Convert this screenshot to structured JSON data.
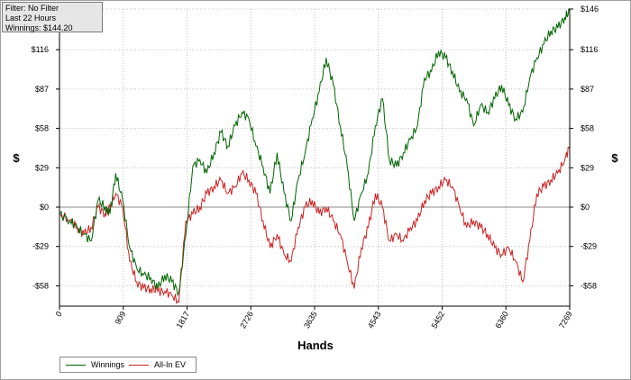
{
  "info": {
    "filter": "Filter: No Filter",
    "period": "Last  22 Hours",
    "winnings": "Winnings: $144.20"
  },
  "colors": {
    "winnings": "#006400",
    "allin": "#cc2222",
    "zero_line": "#888888",
    "grid": "#c0c0c0"
  },
  "chart_data": {
    "type": "line",
    "xlabel": "Hands",
    "ylabel": "$",
    "xlim": [
      0,
      7269
    ],
    "ylim": [
      -73,
      146
    ],
    "x_ticks": [
      "0",
      "909",
      "1817",
      "2726",
      "3635",
      "4543",
      "5452",
      "6360",
      "7269"
    ],
    "x_tick_values": [
      0,
      909,
      1817,
      2726,
      3635,
      4543,
      5452,
      6360,
      7269
    ],
    "y_tick_labels": [
      "$146",
      "$116",
      "$87",
      "$58",
      "$29",
      "$0",
      "-$29",
      "-$58"
    ],
    "y_tick_values": [
      146,
      116,
      87,
      58,
      29,
      0,
      -29,
      -58
    ],
    "grid": true,
    "legend_position": "bottom-left",
    "series": [
      {
        "name": "Winnings",
        "x": [
          0,
          150,
          250,
          350,
          450,
          550,
          650,
          720,
          800,
          900,
          1000,
          1100,
          1200,
          1300,
          1400,
          1500,
          1600,
          1700,
          1800,
          1900,
          2000,
          2100,
          2200,
          2300,
          2400,
          2500,
          2600,
          2700,
          2800,
          2900,
          3000,
          3100,
          3200,
          3300,
          3400,
          3500,
          3600,
          3700,
          3800,
          3900,
          4000,
          4100,
          4200,
          4300,
          4400,
          4500,
          4600,
          4700,
          4800,
          4900,
          5000,
          5100,
          5200,
          5300,
          5400,
          5500,
          5600,
          5700,
          5800,
          5900,
          6000,
          6100,
          6200,
          6300,
          6400,
          6500,
          6600,
          6700,
          6800,
          6900,
          7000,
          7100,
          7200,
          7269
        ],
        "y": [
          -5,
          -10,
          -15,
          -20,
          -25,
          5,
          0,
          -5,
          25,
          5,
          -30,
          -45,
          -50,
          -52,
          -60,
          -50,
          -55,
          -63,
          -20,
          30,
          35,
          25,
          40,
          55,
          45,
          60,
          70,
          65,
          45,
          30,
          10,
          40,
          10,
          -10,
          20,
          40,
          65,
          85,
          110,
          90,
          60,
          30,
          -10,
          10,
          25,
          60,
          80,
          35,
          30,
          40,
          50,
          60,
          95,
          100,
          115,
          110,
          100,
          85,
          80,
          60,
          75,
          70,
          80,
          90,
          75,
          65,
          70,
          95,
          110,
          120,
          130,
          132,
          140,
          144
        ]
      },
      {
        "name": "All-In EV",
        "x": [
          0,
          150,
          250,
          350,
          450,
          550,
          650,
          720,
          800,
          900,
          1000,
          1100,
          1200,
          1300,
          1400,
          1500,
          1600,
          1700,
          1800,
          1900,
          2000,
          2100,
          2200,
          2300,
          2400,
          2500,
          2600,
          2700,
          2800,
          2900,
          3000,
          3100,
          3200,
          3300,
          3400,
          3500,
          3600,
          3700,
          3800,
          3900,
          4000,
          4100,
          4200,
          4300,
          4400,
          4500,
          4600,
          4700,
          4800,
          4900,
          5000,
          5100,
          5200,
          5300,
          5400,
          5500,
          5600,
          5700,
          5800,
          5900,
          6000,
          6100,
          6200,
          6300,
          6400,
          6500,
          6600,
          6700,
          6800,
          6900,
          7000,
          7100,
          7200,
          7269
        ],
        "y": [
          -5,
          -10,
          -15,
          -20,
          -15,
          0,
          -5,
          0,
          10,
          0,
          -40,
          -55,
          -60,
          -60,
          -62,
          -62,
          -65,
          -70,
          -10,
          -5,
          0,
          10,
          15,
          20,
          10,
          15,
          25,
          20,
          10,
          -10,
          -30,
          -20,
          -35,
          -40,
          -15,
          0,
          5,
          -5,
          0,
          -10,
          -20,
          -40,
          -60,
          -30,
          -15,
          10,
          0,
          -25,
          -20,
          -25,
          -15,
          -10,
          5,
          10,
          15,
          20,
          15,
          0,
          -15,
          -10,
          -15,
          -20,
          -30,
          -35,
          -30,
          -40,
          -55,
          -25,
          10,
          15,
          20,
          25,
          35,
          45
        ]
      }
    ]
  },
  "legend": {
    "winnings_label": "Winnings",
    "allin_label": "All-In EV"
  }
}
